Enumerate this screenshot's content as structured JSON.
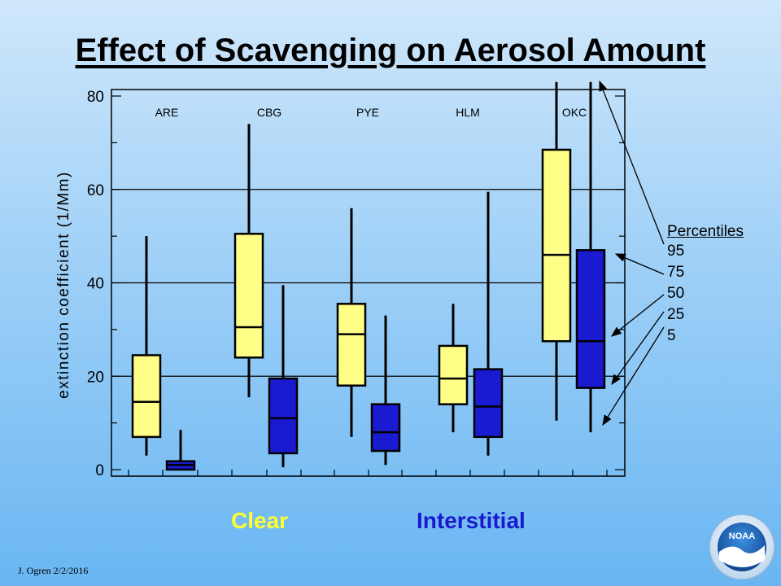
{
  "title": "Effect of Scavenging on Aerosol Amount",
  "chart_data": {
    "type": "boxplot",
    "ylabel": "extinction coefficient (1/Mm)",
    "ylim": [
      0,
      80
    ],
    "yticks": [
      "0",
      "20",
      "40",
      "60",
      "80"
    ],
    "sites": [
      "ARE",
      "CBG",
      "PYE",
      "HLM",
      "OKC"
    ],
    "series": [
      {
        "name": "Clear",
        "color": "#ffff88",
        "boxes": [
          {
            "site": "ARE",
            "p5": 3,
            "p25": 7,
            "p50": 14.5,
            "p75": 24.5,
            "p95": 50
          },
          {
            "site": "CBG",
            "p5": 15.5,
            "p25": 24,
            "p50": 30.5,
            "p75": 50.5,
            "p95": 74
          },
          {
            "site": "PYE",
            "p5": 7,
            "p25": 18,
            "p50": 29,
            "p75": 35.5,
            "p95": 56
          },
          {
            "site": "HLM",
            "p5": 8,
            "p25": 14,
            "p50": 19.5,
            "p75": 26.5,
            "p95": 35.5
          },
          {
            "site": "OKC",
            "p5": 10.5,
            "p25": 27.5,
            "p50": 46,
            "p75": 68.5,
            "p95": 83
          }
        ]
      },
      {
        "name": "Interstitial",
        "color": "#1a1ad0",
        "boxes": [
          {
            "site": "ARE",
            "p5": 0,
            "p25": 0,
            "p50": 1,
            "p75": 1.8,
            "p95": 8.5
          },
          {
            "site": "CBG",
            "p5": 0.5,
            "p25": 3.5,
            "p50": 11,
            "p75": 19.5,
            "p95": 39.5
          },
          {
            "site": "PYE",
            "p5": 1,
            "p25": 4,
            "p50": 8,
            "p75": 14,
            "p95": 33
          },
          {
            "site": "HLM",
            "p5": 3,
            "p25": 7,
            "p50": 13.5,
            "p75": 21.5,
            "p95": 59.5
          },
          {
            "site": "OKC",
            "p5": 8,
            "p25": 17.5,
            "p50": 27.5,
            "p75": 47,
            "p95": 83
          }
        ]
      }
    ],
    "legend": {
      "title": "Percentiles",
      "items": [
        "95",
        "75",
        "50",
        "25",
        "5"
      ]
    }
  },
  "group_labels": {
    "clear": "Clear",
    "interstitial": "Interstitial"
  },
  "colors": {
    "clear_text": "#ffff33",
    "interstitial_text": "#1a1acc",
    "box_outline": "#000000"
  },
  "footer": "J. Ogren  2/2/2016",
  "logo": {
    "text": "NOAA"
  }
}
